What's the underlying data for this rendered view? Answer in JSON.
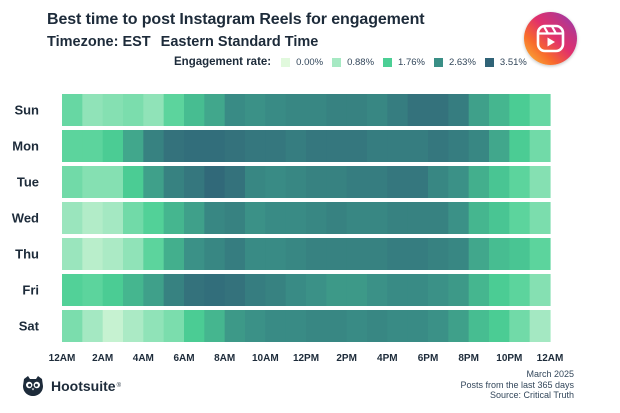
{
  "header": {
    "title": "Best time to post Instagram Reels for engagement",
    "timezone_label": "Timezone: EST",
    "timezone_name": "Eastern Standard Time"
  },
  "legend": {
    "title": "Engagement rate:",
    "items": [
      {
        "label": "0.00%",
        "color": "#e1f9dd"
      },
      {
        "label": "0.88%",
        "color": "#a6e9c3"
      },
      {
        "label": "1.76%",
        "color": "#4ccf95"
      },
      {
        "label": "2.63%",
        "color": "#3a8f86"
      },
      {
        "label": "3.51%",
        "color": "#306377"
      }
    ]
  },
  "app_icon": "instagram-reels-icon",
  "footer": {
    "brand": "Hootsuite",
    "brand_mark": "®",
    "date": "March 2025",
    "period": "Posts from the last 365 days",
    "source": "Source: Critical Truth"
  },
  "chart_data": {
    "type": "heatmap",
    "title": "Best time to post Instagram Reels for engagement",
    "xlabel": "",
    "ylabel": "",
    "rows": [
      "Sun",
      "Mon",
      "Tue",
      "Wed",
      "Thu",
      "Fri",
      "Sat"
    ],
    "x_tick_labels": [
      "12AM",
      "2AM",
      "4AM",
      "6AM",
      "8AM",
      "10AM",
      "12PM",
      "2PM",
      "4PM",
      "6PM",
      "8PM",
      "10PM",
      "12AM"
    ],
    "hours": 24,
    "color_scale": {
      "stops": [
        0.0,
        0.88,
        1.76,
        2.63,
        3.51
      ],
      "colors": [
        "#e1f9dd",
        "#a6e9c3",
        "#4ccf95",
        "#3a8f86",
        "#306377"
      ],
      "unit": "%"
    },
    "values": [
      [
        1.5,
        1.1,
        1.2,
        1.3,
        1.1,
        1.6,
        2.0,
        2.3,
        2.7,
        2.6,
        2.7,
        2.8,
        2.8,
        2.9,
        2.9,
        2.8,
        3.0,
        3.2,
        3.2,
        3.0,
        2.4,
        2.1,
        1.8,
        1.5
      ],
      [
        1.6,
        1.6,
        1.8,
        2.3,
        2.9,
        3.2,
        3.3,
        3.3,
        3.2,
        3.1,
        3.1,
        3.0,
        3.1,
        3.1,
        3.1,
        3.0,
        3.0,
        3.0,
        3.1,
        3.0,
        2.8,
        2.3,
        1.8,
        1.4
      ],
      [
        1.4,
        1.2,
        1.2,
        1.8,
        2.4,
        2.9,
        3.1,
        3.4,
        3.2,
        2.8,
        2.7,
        2.8,
        2.9,
        2.9,
        3.0,
        3.0,
        3.1,
        3.1,
        2.8,
        2.6,
        2.2,
        1.9,
        1.6,
        1.2
      ],
      [
        1.0,
        0.7,
        0.9,
        1.4,
        1.7,
        2.1,
        2.4,
        2.8,
        2.9,
        2.6,
        2.7,
        2.7,
        2.8,
        2.9,
        2.8,
        2.8,
        2.9,
        2.9,
        2.9,
        2.6,
        2.1,
        1.9,
        1.6,
        1.3
      ],
      [
        1.0,
        0.6,
        0.8,
        1.1,
        1.6,
        2.2,
        2.6,
        2.8,
        3.0,
        2.7,
        2.7,
        2.8,
        2.9,
        2.9,
        2.9,
        2.9,
        3.0,
        3.0,
        2.9,
        2.8,
        2.3,
        2.0,
        1.9,
        1.6
      ],
      [
        1.7,
        1.6,
        1.8,
        2.1,
        2.4,
        2.9,
        3.2,
        3.3,
        3.2,
        3.0,
        2.9,
        2.7,
        2.6,
        2.5,
        2.5,
        2.6,
        2.7,
        2.7,
        2.6,
        2.5,
        2.1,
        1.8,
        1.6,
        1.2
      ],
      [
        1.3,
        0.9,
        0.4,
        0.8,
        1.1,
        1.3,
        1.8,
        2.1,
        2.5,
        2.6,
        2.7,
        2.7,
        2.8,
        2.8,
        2.7,
        2.8,
        2.7,
        2.7,
        2.6,
        2.4,
        2.0,
        1.8,
        1.4,
        0.9
      ]
    ]
  }
}
